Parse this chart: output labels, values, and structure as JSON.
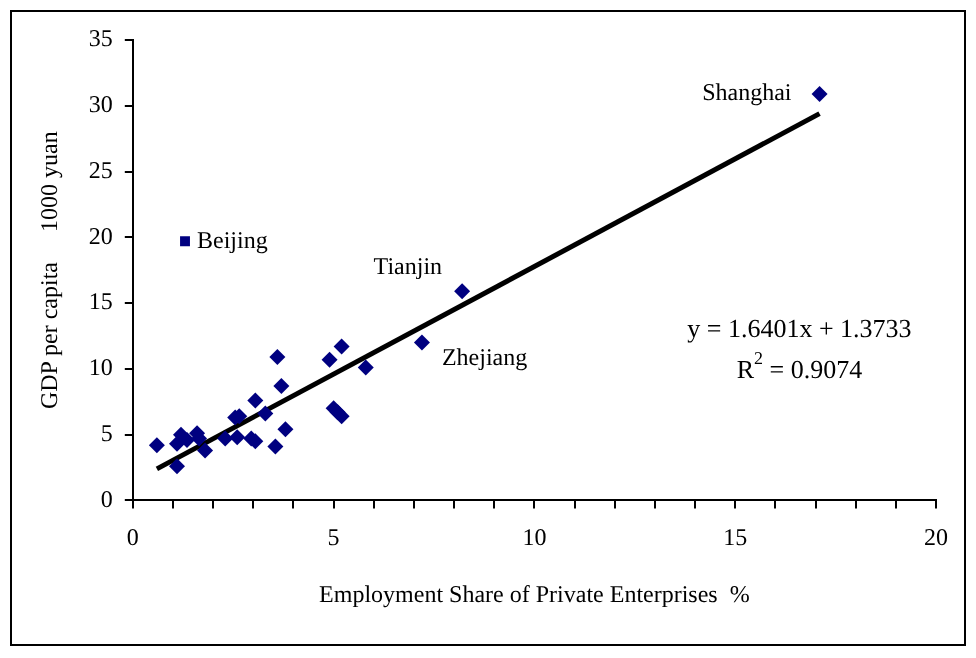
{
  "chart_data": {
    "type": "scatter",
    "xlabel": "Employment Share of Private Enterprises  %",
    "ylabel": "GDP per capita     1000 yuan",
    "xlim": [
      0,
      20
    ],
    "ylim": [
      0,
      35
    ],
    "xticks": [
      0,
      {
        "value": 1,
        "label": null
      },
      {
        "value": 2,
        "label": null
      },
      {
        "value": 3,
        "label": null
      },
      {
        "value": 4,
        "label": null
      },
      5,
      {
        "value": 6,
        "label": null
      },
      {
        "value": 7,
        "label": null
      },
      {
        "value": 8,
        "label": null
      },
      {
        "value": 9,
        "label": null
      },
      10,
      {
        "value": 11,
        "label": null
      },
      {
        "value": 12,
        "label": null
      },
      {
        "value": 13,
        "label": null
      },
      {
        "value": 14,
        "label": null
      },
      15,
      {
        "value": 16,
        "label": null
      },
      {
        "value": 17,
        "label": null
      },
      {
        "value": 18,
        "label": null
      },
      {
        "value": 19,
        "label": null
      },
      20
    ],
    "yticks": [
      0,
      5,
      10,
      15,
      20,
      25,
      30,
      35
    ],
    "grid": false,
    "legend": false,
    "series": [
      {
        "color": "#000080",
        "marker": "diamond",
        "x": [
          0.6,
          1.1,
          1.2,
          1.1,
          1.35,
          1.6,
          1.65,
          1.8,
          2.3,
          2.6,
          2.55,
          2.65,
          2.95,
          3.05,
          3.05,
          3.3,
          3.55,
          3.6,
          3.7,
          3.8,
          4.9,
          5.0,
          5.1,
          5.2,
          5.2,
          5.8,
          7.2,
          8.2,
          17.1
        ],
        "values": [
          4.2,
          2.6,
          5.0,
          4.3,
          4.6,
          5.1,
          4.7,
          3.8,
          4.7,
          4.8,
          6.3,
          6.4,
          4.7,
          4.5,
          7.6,
          6.6,
          4.1,
          10.9,
          8.7,
          5.4,
          10.7,
          7.0,
          6.7,
          6.4,
          11.7,
          10.1,
          12.0,
          15.9,
          30.9
        ]
      },
      {
        "color": "#000080",
        "marker": "square",
        "x": [
          1.3
        ],
        "values": [
          19.7
        ]
      },
      {
        "type": "line",
        "color": "#000000",
        "marker": "none",
        "line_style": "solid",
        "x": [
          0.6,
          17.1
        ],
        "values": [
          2.4,
          29.4
        ]
      }
    ],
    "annotations": [
      {
        "text": "Beijing",
        "x": 1.3,
        "y": 19.7
      },
      {
        "text": "Shanghai",
        "x": 17.1,
        "y": 30.9
      },
      {
        "text": "Tianjin",
        "x": 8.2,
        "y": 15.9
      },
      {
        "text": "Zhejiang",
        "x": 7.2,
        "y": 12.0
      },
      "y = 1.6401x + 1.3733",
      "R$^{2}$ = 0.9074"
    ]
  }
}
